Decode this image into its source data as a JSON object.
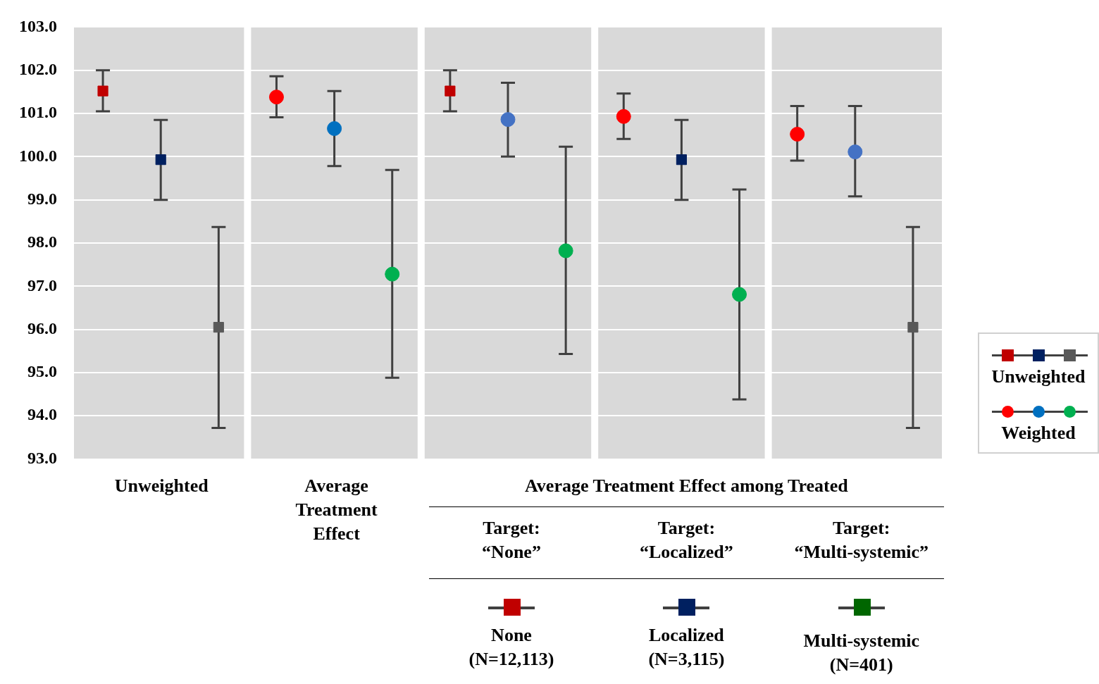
{
  "chart_data": {
    "type": "scatter",
    "categories": [
      null,
      null,
      null,
      null,
      null,
      null,
      null,
      null,
      null,
      null,
      null,
      null,
      null,
      null,
      null
    ],
    "ylim": [
      93,
      103
    ],
    "yticks": [
      {
        "value": 93,
        "label": "93.0"
      },
      {
        "value": 94,
        "label": "94.0"
      },
      {
        "value": 95,
        "label": "95.0"
      },
      {
        "value": 96,
        "label": "96.0"
      },
      {
        "value": 97,
        "label": "97.0"
      },
      {
        "value": 98,
        "label": "98.0"
      },
      {
        "value": 99,
        "label": "99.0"
      },
      {
        "value": 100,
        "label": "100.0"
      },
      {
        "value": 101,
        "label": "101.0"
      },
      {
        "value": 102,
        "label": "102.0"
      },
      {
        "value": 103,
        "label": "103.0"
      }
    ],
    "grid": "y",
    "legend": "right",
    "annotations": [
      "Unweighted",
      "Average Treatment Effect",
      "Average Treatment Effect among Treated",
      "Target:\n“None”",
      "Target:\n“Localized”",
      "Target:\n“Multi-systemic”",
      "None\n(N=12,113)",
      "Localized\n(N=3,115)",
      "Multi-systemic\n(N=401)"
    ],
    "series": [
      {
        "name": "Unweighted",
        "marker": "square",
        "colors": [
          "#c00000",
          "#002060",
          "#595959",
          null,
          null,
          null,
          "#c00000",
          null,
          null,
          null,
          "#002060",
          null,
          null,
          null,
          "#595959"
        ],
        "values": [
          101.52,
          99.93,
          96.05,
          null,
          null,
          null,
          101.52,
          null,
          null,
          null,
          99.93,
          null,
          null,
          null,
          96.05
        ],
        "errors": [
          [
            101.05,
            102.0
          ],
          [
            99.0,
            100.85
          ],
          [
            93.72,
            98.37
          ],
          null,
          null,
          null,
          [
            101.05,
            102.0
          ],
          null,
          null,
          null,
          [
            99.0,
            100.85
          ],
          null,
          null,
          null,
          [
            93.72,
            98.37
          ]
        ]
      },
      {
        "name": "Weighted",
        "marker": "circle",
        "colors": [
          null,
          null,
          null,
          "#ff0000",
          "#0070c0",
          "#00b050",
          null,
          "#4472c4",
          "#00b050",
          "#ff0000",
          null,
          "#00b050",
          "#ff0000",
          "#4472c4",
          null
        ],
        "values": [
          null,
          null,
          null,
          101.38,
          100.65,
          97.28,
          null,
          100.86,
          97.82,
          100.93,
          null,
          96.81,
          100.52,
          100.11,
          null
        ],
        "errors": [
          null,
          null,
          null,
          [
            100.91,
            101.86
          ],
          [
            99.78,
            101.52
          ],
          [
            94.88,
            99.69
          ],
          null,
          [
            100.0,
            101.71
          ],
          [
            95.43,
            100.23
          ],
          [
            100.41,
            101.46
          ],
          null,
          [
            94.38,
            99.24
          ],
          [
            99.91,
            101.17
          ],
          [
            99.08,
            101.17
          ],
          null
        ]
      }
    ]
  }
}
